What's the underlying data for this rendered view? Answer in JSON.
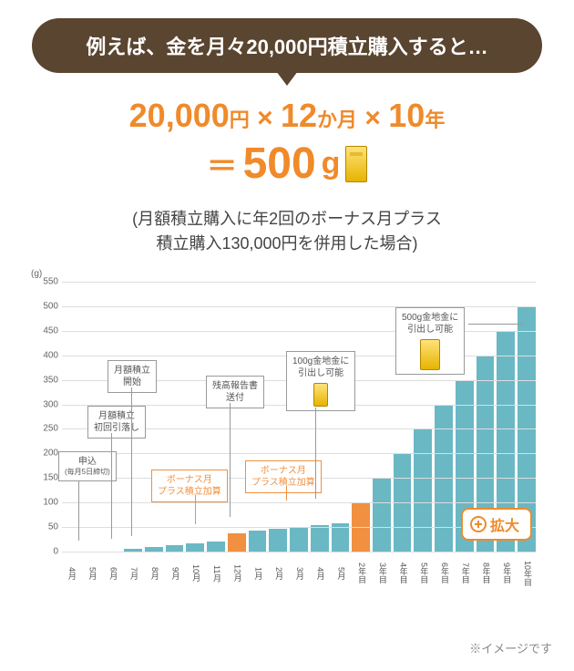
{
  "banner": "例えば、金を月々20,000円積立購入すると…",
  "formula": {
    "amount": "20,000",
    "amount_unit": "円",
    "months": "12",
    "months_unit": "か月",
    "years": "10",
    "years_unit": "年",
    "equals": "＝",
    "result": "500",
    "result_unit": "g",
    "times": "×"
  },
  "subtitle_l1": "(月額積立購入に年2回のボーナス月プラス",
  "subtitle_l2": "積立購入130,000円を併用した場合)",
  "chart": {
    "y_unit": "(g)",
    "y_max": 550,
    "y_ticks": [
      0,
      50,
      100,
      150,
      200,
      250,
      300,
      350,
      400,
      450,
      500,
      550
    ],
    "grid_color": "#dddddd",
    "bar_color": "#6ab8c4",
    "accent_color": "#f09040",
    "x_labels": [
      "4月",
      "5月",
      "6月",
      "7月",
      "8月",
      "9月",
      "10月",
      "11月",
      "12月",
      "1月",
      "2月",
      "3月",
      "4月",
      "5月",
      "2年目",
      "3年目",
      "4年目",
      "5年目",
      "6年目",
      "7年目",
      "8年目",
      "9年目",
      "10年目"
    ],
    "values": [
      0,
      0,
      0,
      5,
      9,
      13,
      17,
      21,
      38,
      42,
      46,
      50,
      54,
      58,
      100,
      150,
      200,
      250,
      300,
      350,
      400,
      450,
      500
    ],
    "orange_idx": [
      8,
      14
    ]
  },
  "callouts": {
    "c1": {
      "text_l1": "申込",
      "text_l2": "(毎月5日締切)"
    },
    "c2": {
      "text": "月額積立\n初回引落し"
    },
    "c3": {
      "text": "月額積立\n開始"
    },
    "c4": {
      "text": "ボーナス月\nプラス積立加算"
    },
    "c5": {
      "text": "残高報告書\n送付"
    },
    "c6": {
      "text": "ボーナス月\nプラス積立加算"
    },
    "c7": {
      "text": "100g金地金に\n引出し可能"
    },
    "c8": {
      "text": "500g金地金に\n引出し可能"
    }
  },
  "expand_label": "拡大",
  "footnote": "※イメージです"
}
